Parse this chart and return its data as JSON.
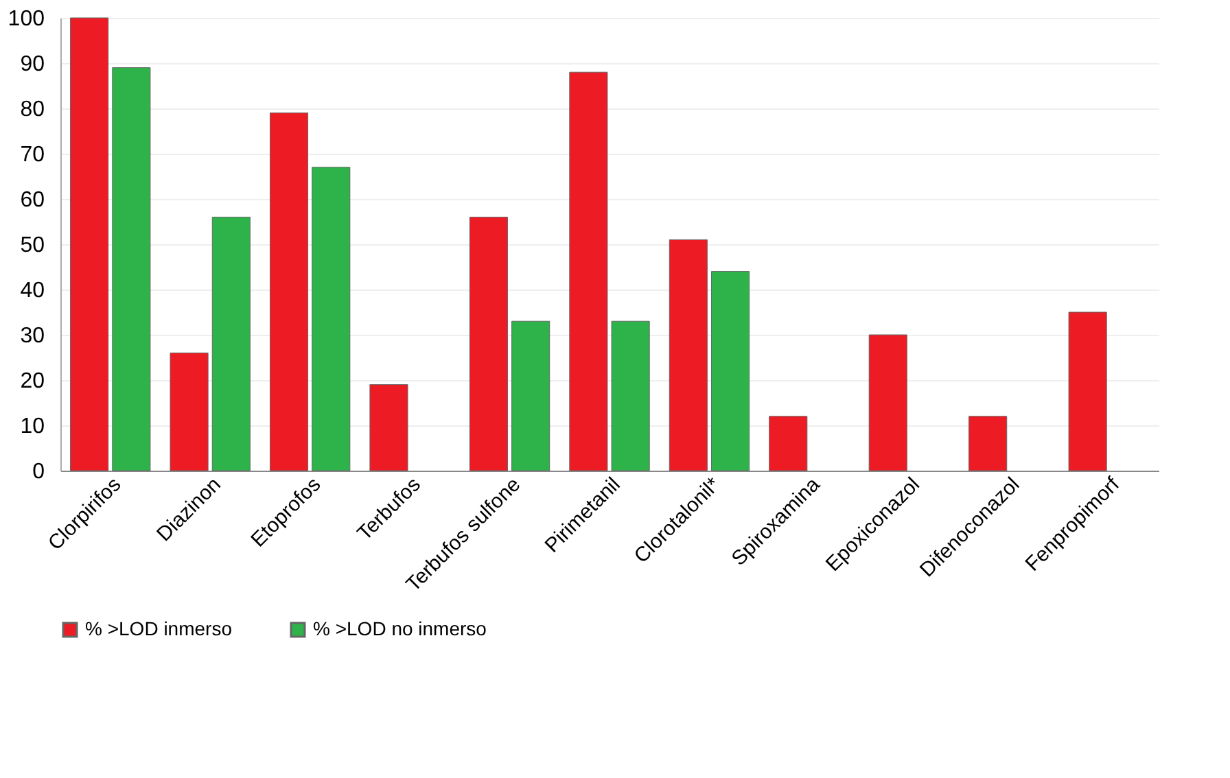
{
  "chart_data": {
    "type": "bar",
    "categories": [
      "Clorpirifos",
      "Diazinon",
      "Etoprofos",
      "Terbufos",
      "Terbufos sulfone",
      "Pirimetanil",
      "Clorotalonil*",
      "Spiroxamina",
      "Epoxiconazol",
      "Difenoconazol",
      "Fenpropimorf"
    ],
    "series": [
      {
        "name": "% >LOD inmerso",
        "color": "#ed1c24",
        "values": [
          100,
          26,
          79,
          19,
          56,
          88,
          51,
          12,
          30,
          12,
          35
        ]
      },
      {
        "name": "% >LOD no inmerso",
        "color": "#2db34a",
        "values": [
          89,
          56,
          67,
          null,
          33,
          33,
          44,
          null,
          null,
          null,
          null
        ]
      }
    ],
    "ylim": [
      0,
      100
    ],
    "yticks": [
      0,
      10,
      20,
      30,
      40,
      50,
      60,
      70,
      80,
      90,
      100
    ],
    "grid": "y",
    "legend": "bottom"
  }
}
